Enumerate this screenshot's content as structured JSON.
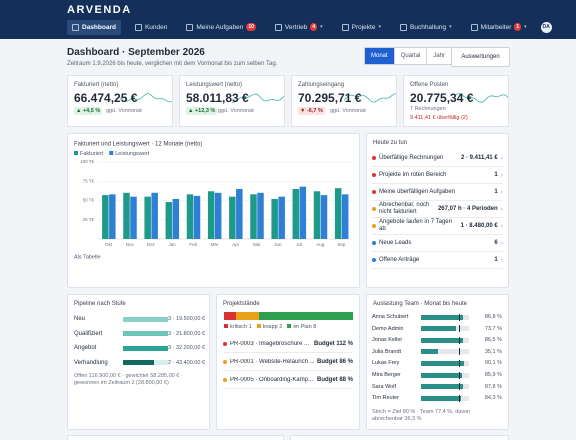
{
  "nav": {
    "logo": "ARVENDA",
    "tabs": [
      {
        "label": "Dashboard",
        "active": true
      },
      {
        "label": "Kunden"
      },
      {
        "label": "Meine Aufgaben",
        "badge": "10"
      },
      {
        "label": "Vertrieb",
        "badge": "4",
        "menu": true
      },
      {
        "label": "Projekte",
        "menu": true
      },
      {
        "label": "Buchhaltung",
        "menu": true
      },
      {
        "label": "Mitarbeiter",
        "badge": "1",
        "menu": true
      }
    ],
    "avatar": "DA"
  },
  "header": {
    "title": "Dashboard · September 2026",
    "subtitle": "Zeitraum 1.9.2026 bis heute, verglichen mit dem Vormonat bis zum selben Tag.",
    "periods": [
      "Monat",
      "Quartal",
      "Jahr"
    ],
    "active_period": 0,
    "button": "Auswertungen"
  },
  "kpis": [
    {
      "label": "Fakturiert (netto)",
      "value": "66.474,25 €",
      "change": "▲ +4,5 %",
      "trend": "up",
      "note": "ggü. Vormonat"
    },
    {
      "label": "Leistungswert (netto)",
      "value": "58.011,83 €",
      "change": "▲ +12,3 %",
      "trend": "up",
      "note": "ggü. Vormonat"
    },
    {
      "label": "Zahlungseingang",
      "value": "70.295,71 €",
      "change": "▼ -6,7 %",
      "trend": "down",
      "note": "ggü. Vormonat"
    },
    {
      "label": "Offene Posten",
      "value": "20.775,34 €",
      "note": "7 Rechnungen",
      "alert": "9.411,41 € überfällig (2)"
    }
  ],
  "chart_data": {
    "type": "bar",
    "title": "Fakturiert und Leistungswert · 12 Monate (netto)",
    "categories": [
      "Okt",
      "Nov",
      "Dez",
      "Jan",
      "Feb",
      "Mär",
      "Apr",
      "Mai",
      "Jun",
      "Jul",
      "Aug",
      "Sep"
    ],
    "series": [
      {
        "name": "Fakturiert",
        "color": "#1e9a8a",
        "values": [
          57,
          60,
          55,
          48,
          58,
          62,
          55,
          58,
          52,
          65,
          62,
          66
        ]
      },
      {
        "name": "Leistungswert",
        "color": "#2f7fd6",
        "values": [
          58,
          55,
          60,
          52,
          56,
          60,
          65,
          60,
          55,
          68,
          57,
          58
        ]
      }
    ],
    "ylim": [
      0,
      100
    ],
    "yticks": [
      {
        "value": 25,
        "label": "25 T€"
      },
      {
        "value": 50,
        "label": "50 T€"
      },
      {
        "value": 75,
        "label": "75 T€"
      },
      {
        "value": 100,
        "label": "100 T€"
      }
    ],
    "grid": true,
    "link": "Als Tabelle"
  },
  "todo": {
    "title": "Heute zu tun",
    "items": [
      {
        "label": "Überfällige Rechnungen",
        "value": "2 · 9.411,41 €",
        "color": "#d93434"
      },
      {
        "label": "Projekte im roten Bereich",
        "value": "1",
        "color": "#d93434"
      },
      {
        "label": "Meine überfälligen Aufgaben",
        "value": "1",
        "color": "#d93434"
      },
      {
        "label": "Abrechenbar, noch nicht fakturiert",
        "value": "267,07 h · 4 Perioden",
        "color": "#e8a21a"
      },
      {
        "label": "Angebote laufen in 7 Tagen ab",
        "value": "1 · 8.480,00 €",
        "color": "#e8a21a"
      },
      {
        "label": "Neue Leads",
        "value": "6",
        "color": "#2f7fd6"
      },
      {
        "label": "Offene Anträge",
        "value": "1",
        "color": "#2f7fd6"
      }
    ]
  },
  "pipeline": {
    "title": "Pipeline nach Stufe",
    "stages": [
      {
        "label": "Neu",
        "value": "3 · 19.500,00 €"
      },
      {
        "label": "Qualifiziert",
        "value": "3 · 21.800,00 €"
      },
      {
        "label": "Angebot",
        "value": "3 · 32.200,00 €"
      },
      {
        "label": "Verhandlung",
        "value": "2 · 43.400,00 €"
      }
    ],
    "footer": "Offen 116.900,00 € · gewichtet 58.285,00 € · gewonnen im Zeitraum 2 (28.800,00 €)"
  },
  "projects": {
    "title": "Projektstände",
    "segments": [
      {
        "name": "kritisch",
        "count": 1,
        "color": "#d93434"
      },
      {
        "name": "knapp",
        "count": 2,
        "color": "#e8a21a"
      },
      {
        "name": "im Plan",
        "count": 8,
        "color": "#2e9e4f"
      }
    ],
    "items": [
      {
        "label": "PR-0003 · Imagebroschüre ...",
        "value": "Budget 112 %",
        "color": "#d93434"
      },
      {
        "label": "PR-0001 · Website-Relaunch ...",
        "value": "Budget 86 %",
        "color": "#e8a21a"
      },
      {
        "label": "PR-0005 · Onboarding-Kamp...",
        "value": "Budget 88 %",
        "color": "#e8a21a"
      }
    ]
  },
  "team": {
    "title": "Auslastung Team · Monat bis heute",
    "names": [
      "Anna Schubert",
      "Demo Admin",
      "Jonas Keller",
      "Julia Brandt",
      "Lukas Frey",
      "Mira Berger",
      "Sara Wolf",
      "Tim Reuter"
    ],
    "values": [
      86.8,
      73.7,
      86.5,
      35.1,
      90.1,
      85.9,
      87.8,
      84.3
    ],
    "value_labels": [
      "86,8 %",
      "73,7 %",
      "86,5 %",
      "35,1 %",
      "90,1 %",
      "85,9 %",
      "87,8 %",
      "84,3 %"
    ],
    "target": 80,
    "footer": "Strich = Ziel 80 % · Team 77,4 %, davon abrechenbar 36,3 %"
  }
}
